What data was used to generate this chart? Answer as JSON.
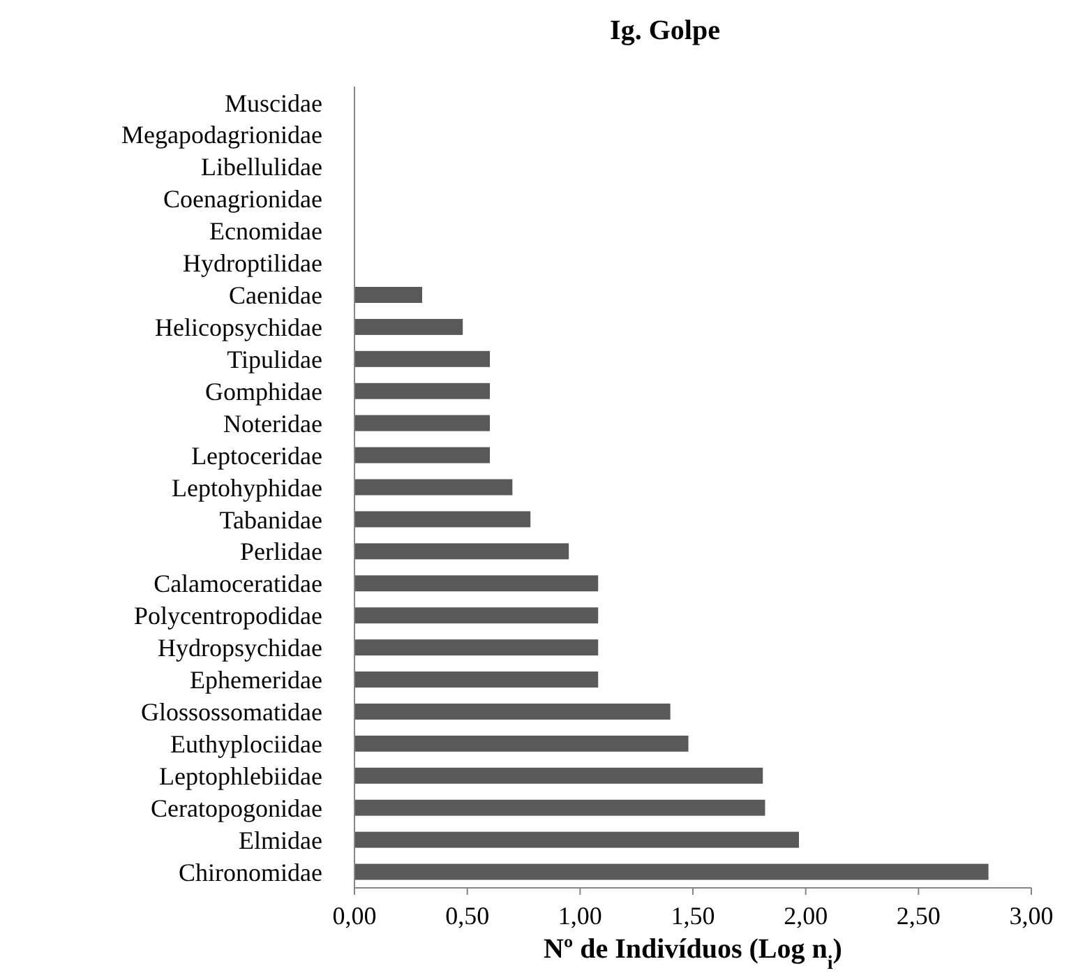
{
  "chart_data": {
    "type": "bar",
    "orientation": "horizontal",
    "title": "Ig. Golpe",
    "xlabel": "Nº de Indivíduos (Log n$_{i}$)",
    "categories": [
      "Muscidae",
      "Megapodagrionidae",
      "Libellulidae",
      "Coenagrionidae",
      "Ecnomidae",
      "Hydroptilidae",
      "Caenidae",
      "Helicopsychidae",
      "Tipulidae",
      "Gomphidae",
      "Noteridae",
      "Leptoceridae",
      "Leptohyphidae",
      "Tabanidae",
      "Perlidae",
      "Calamoceratidae",
      "Polycentropodidae",
      "Hydropsychidae",
      "Ephemeridae",
      "Glossossomatidae",
      "Euthyplociidae",
      "Leptophlebiidae",
      "Ceratopogonidae",
      "Elmidae",
      "Chironomidae"
    ],
    "values": [
      0,
      0,
      0,
      0,
      0,
      0,
      0.3,
      0.48,
      0.6,
      0.6,
      0.6,
      0.6,
      0.7,
      0.78,
      0.95,
      1.08,
      1.08,
      1.08,
      1.08,
      1.4,
      1.48,
      1.81,
      1.82,
      1.97,
      2.81
    ],
    "color": "#595959",
    "xlim": [
      0,
      3
    ],
    "xticks": [
      {
        "value": 0,
        "label": "0,00"
      },
      {
        "value": 0.5,
        "label": "0,50"
      },
      {
        "value": 1,
        "label": "1,00"
      },
      {
        "value": 1.5,
        "label": "1,50"
      },
      {
        "value": 2,
        "label": "2,00"
      },
      {
        "value": 2.5,
        "label": "2,50"
      },
      {
        "value": 3,
        "label": "3,00"
      }
    ],
    "grid": false
  }
}
